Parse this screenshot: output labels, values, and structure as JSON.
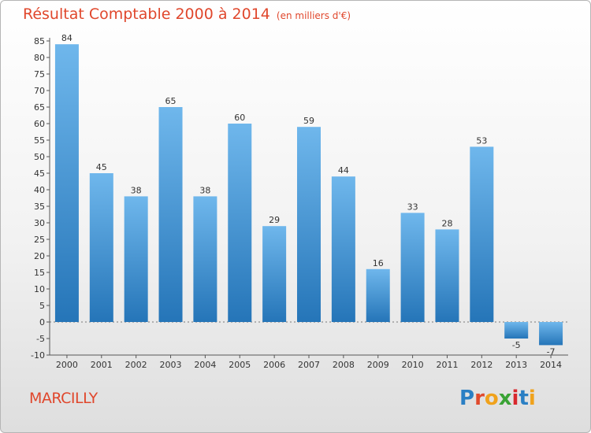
{
  "header": {
    "title": "Résultat Comptable 2000 à 2014",
    "subtitle": "(en milliers d'€)"
  },
  "footer": {
    "location": "MARCILLY",
    "brand": "Proxiti",
    "brand_letters": [
      "P",
      "r",
      "o",
      "x",
      "i",
      "t",
      "i"
    ],
    "brand_colors": [
      "#2a7fc4",
      "#e04a2d",
      "#f0a21c",
      "#3aa335",
      "#d8282d",
      "#2a7fc4",
      "#f0a21c"
    ]
  },
  "colors": {
    "bar_top": "#6fb7ec",
    "bar_bottom": "#2575b8",
    "accent": "#e0472c"
  },
  "chart_data": {
    "type": "bar",
    "title": "Résultat Comptable 2000 à 2014",
    "subtitle": "(en milliers d'€)",
    "categories": [
      "2000",
      "2001",
      "2002",
      "2003",
      "2004",
      "2005",
      "2006",
      "2007",
      "2008",
      "2009",
      "2010",
      "2011",
      "2012",
      "2013",
      "2014"
    ],
    "values": [
      84,
      45,
      38,
      65,
      38,
      60,
      29,
      59,
      44,
      16,
      33,
      28,
      53,
      -5,
      -7
    ],
    "ylim": [
      -10,
      85
    ],
    "yticks": [
      -10,
      -5,
      0,
      5,
      10,
      15,
      20,
      25,
      30,
      35,
      40,
      45,
      50,
      55,
      60,
      65,
      70,
      75,
      80,
      85
    ],
    "grid": false
  }
}
